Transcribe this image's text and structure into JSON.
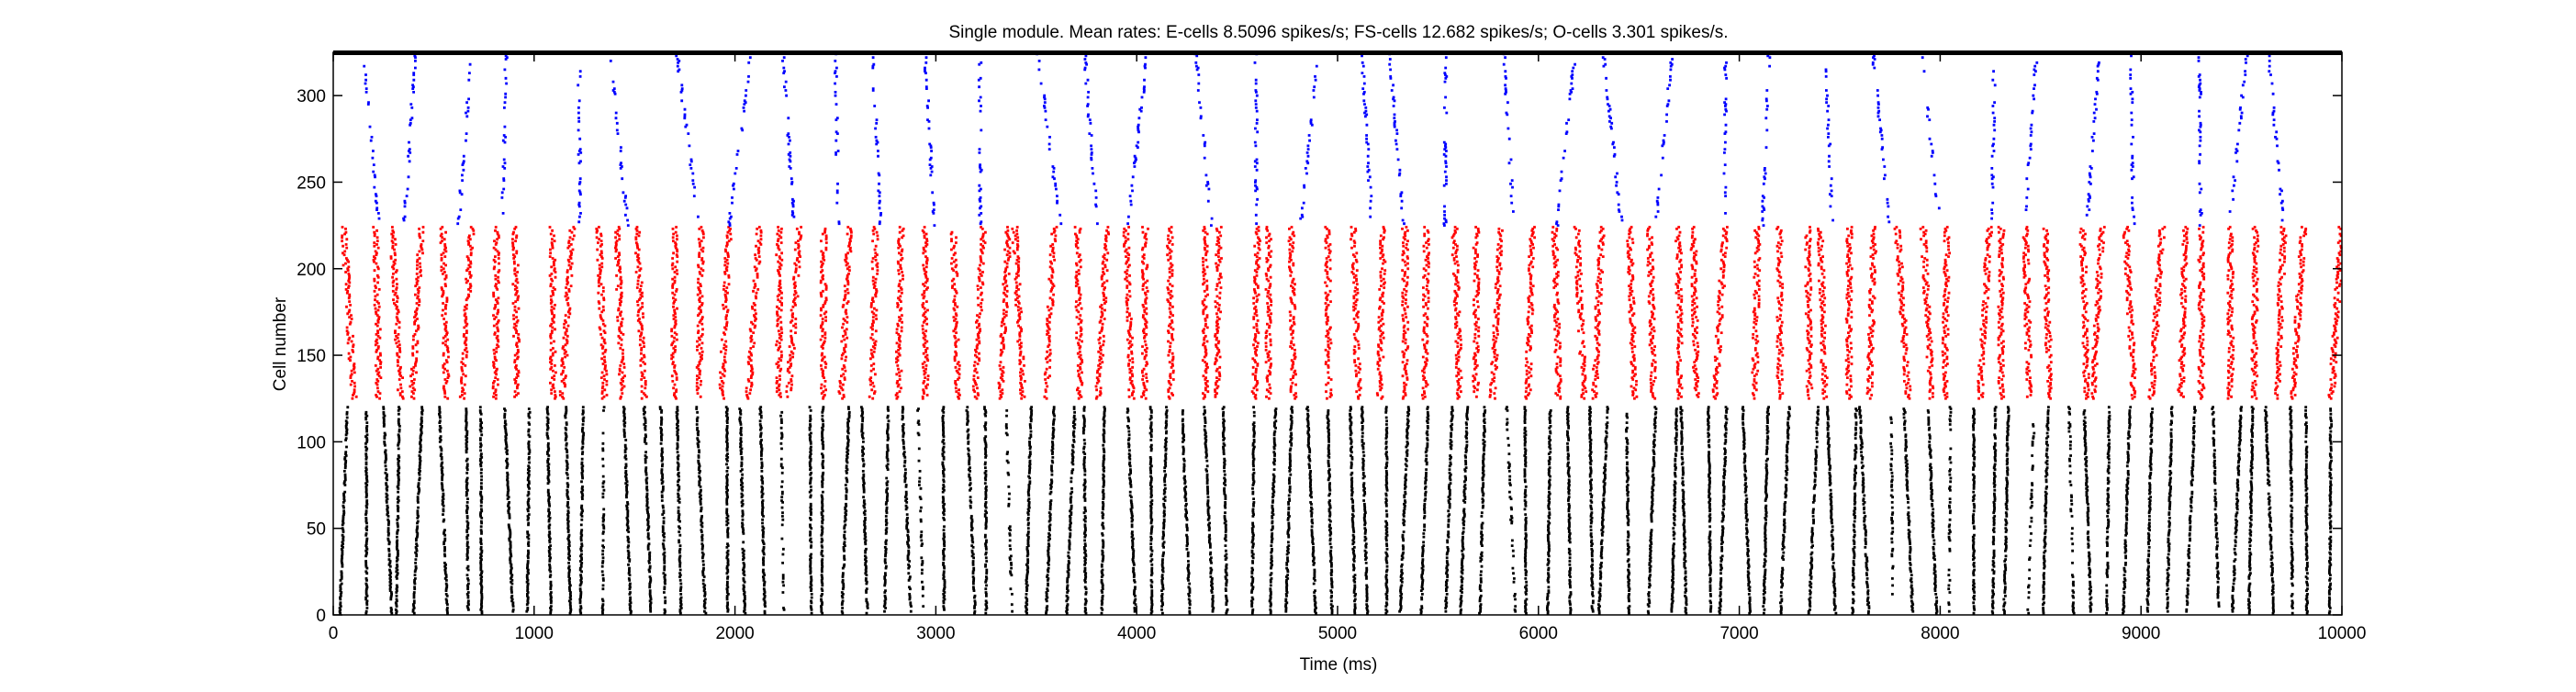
{
  "chart_data": {
    "type": "scatter",
    "title": "Single module. Mean rates: E-cells 8.5096 spikes/s; FS-cells 12.682 spikes/s; O-cells 3.301 spikes/s.",
    "xlabel": "Time (ms)",
    "ylabel": "Cell number",
    "xlim": [
      0,
      10000
    ],
    "ylim": [
      0,
      325
    ],
    "xticks": [
      0,
      1000,
      2000,
      3000,
      4000,
      5000,
      6000,
      7000,
      8000,
      9000,
      10000
    ],
    "yticks": [
      0,
      50,
      100,
      150,
      200,
      250,
      300
    ],
    "grid": false,
    "series": [
      {
        "cells": [
          1,
          120
        ],
        "color": "#000000",
        "band_period_ms": 100
      },
      {
        "cells": [
          125,
          224
        ],
        "color": "#ff0000",
        "band_period_ms": 125
      },
      {
        "cells": [
          225,
          325
        ],
        "color": "#0000ff",
        "band_period_ms": 260
      }
    ]
  }
}
